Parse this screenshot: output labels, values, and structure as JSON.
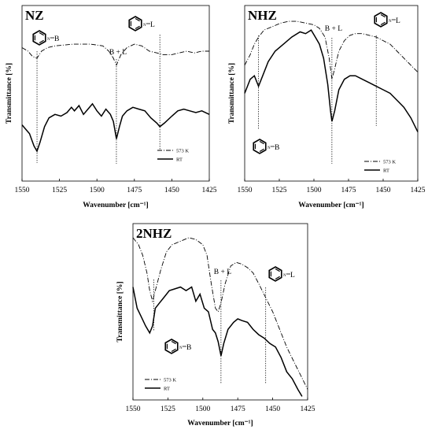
{
  "chart_data": [
    {
      "type": "line",
      "title": "NZ",
      "xlabel": "Wavenumber [cm⁻¹]",
      "ylabel": "Transmittance [%]",
      "xlim": [
        1550,
        1425
      ],
      "xticks": [
        "1550",
        "1525",
        "1500",
        "1475",
        "1450",
        "1425"
      ],
      "grid": false,
      "legend_position": "bottom-right",
      "series": [
        {
          "name": "573 K",
          "style": "dash-dot",
          "x": [
            1550,
            1546,
            1543,
            1540,
            1537,
            1533,
            1528,
            1522,
            1516,
            1510,
            1504,
            1500,
            1496,
            1492,
            1489,
            1487,
            1484,
            1480,
            1475,
            1470,
            1465,
            1460,
            1456,
            1450,
            1445,
            1440,
            1435,
            1430,
            1425
          ],
          "y": [
            0.76,
            0.74,
            0.71,
            0.7,
            0.74,
            0.76,
            0.77,
            0.775,
            0.78,
            0.78,
            0.78,
            0.775,
            0.77,
            0.74,
            0.7,
            0.66,
            0.72,
            0.76,
            0.78,
            0.77,
            0.74,
            0.73,
            0.72,
            0.72,
            0.73,
            0.74,
            0.73,
            0.74,
            0.74
          ]
        },
        {
          "name": "RT",
          "style": "solid",
          "x": [
            1550,
            1548,
            1545,
            1542,
            1540,
            1538,
            1535,
            1532,
            1528,
            1524,
            1520,
            1517,
            1515,
            1512,
            1509,
            1506,
            1503,
            1500,
            1497,
            1494,
            1491,
            1489,
            1487,
            1485,
            1483,
            1480,
            1476,
            1472,
            1468,
            1464,
            1460,
            1458,
            1455,
            1450,
            1446,
            1442,
            1438,
            1434,
            1430,
            1425
          ],
          "y": [
            0.32,
            0.3,
            0.27,
            0.2,
            0.17,
            0.22,
            0.31,
            0.36,
            0.38,
            0.37,
            0.39,
            0.42,
            0.4,
            0.43,
            0.38,
            0.41,
            0.44,
            0.4,
            0.37,
            0.41,
            0.38,
            0.34,
            0.24,
            0.31,
            0.37,
            0.4,
            0.42,
            0.41,
            0.4,
            0.36,
            0.33,
            0.31,
            0.33,
            0.37,
            0.4,
            0.41,
            0.4,
            0.39,
            0.4,
            0.38
          ]
        }
      ],
      "markers": [
        {
          "x": 1540,
          "label": "B"
        },
        {
          "x": 1487,
          "label": "B + L"
        },
        {
          "x": 1458,
          "label": "L"
        }
      ]
    },
    {
      "type": "line",
      "title": "NHZ",
      "xlabel": "Wavenumber [cm⁻¹]",
      "ylabel": "Transmittance [%]",
      "xlim": [
        1550,
        1425
      ],
      "xticks": [
        "1550",
        "1525",
        "1500",
        "1475",
        "1450",
        "1425"
      ],
      "grid": false,
      "legend_position": "bottom-right",
      "series": [
        {
          "name": "573 K",
          "style": "dash-dot",
          "x": [
            1550,
            1546,
            1543,
            1540,
            1536,
            1530,
            1524,
            1518,
            1512,
            1506,
            1500,
            1496,
            1492,
            1489,
            1487,
            1485,
            1482,
            1478,
            1474,
            1470,
            1465,
            1460,
            1455,
            1450,
            1445,
            1440,
            1435,
            1430,
            1425
          ],
          "y": [
            0.66,
            0.72,
            0.78,
            0.82,
            0.86,
            0.88,
            0.9,
            0.91,
            0.91,
            0.9,
            0.89,
            0.87,
            0.82,
            0.7,
            0.58,
            0.64,
            0.74,
            0.8,
            0.83,
            0.84,
            0.84,
            0.83,
            0.82,
            0.8,
            0.78,
            0.74,
            0.7,
            0.66,
            0.62
          ]
        },
        {
          "name": "RT",
          "style": "solid",
          "x": [
            1550,
            1546,
            1543,
            1540,
            1537,
            1533,
            1528,
            1522,
            1516,
            1510,
            1506,
            1502,
            1499,
            1496,
            1493,
            1490,
            1488,
            1487,
            1485,
            1482,
            1478,
            1474,
            1470,
            1465,
            1460,
            1455,
            1450,
            1445,
            1440,
            1435,
            1430,
            1425
          ],
          "y": [
            0.5,
            0.58,
            0.6,
            0.54,
            0.6,
            0.68,
            0.74,
            0.78,
            0.82,
            0.85,
            0.84,
            0.86,
            0.82,
            0.78,
            0.7,
            0.55,
            0.4,
            0.34,
            0.4,
            0.52,
            0.58,
            0.6,
            0.6,
            0.58,
            0.56,
            0.54,
            0.52,
            0.5,
            0.46,
            0.42,
            0.36,
            0.28
          ]
        }
      ],
      "markers": [
        {
          "x": 1540,
          "label": "B"
        },
        {
          "x": 1487,
          "label": "B + L"
        },
        {
          "x": 1455,
          "label": "L"
        }
      ]
    },
    {
      "type": "line",
      "title": "2NHZ",
      "xlabel": "Wavenumber [cm⁻¹]",
      "ylabel": "Transmittance [%]",
      "xlim": [
        1550,
        1425
      ],
      "xticks": [
        "1550",
        "1525",
        "1500",
        "1475",
        "1450",
        "1425"
      ],
      "grid": false,
      "legend_position": "bottom-left",
      "series": [
        {
          "name": "573 K",
          "style": "dash-dot",
          "x": [
            1550,
            1546,
            1543,
            1540,
            1538,
            1536,
            1534,
            1530,
            1526,
            1522,
            1516,
            1510,
            1505,
            1500,
            1497,
            1494,
            1491,
            1489,
            1487,
            1484,
            1480,
            1476,
            1472,
            1468,
            1464,
            1460,
            1455,
            1450,
            1445,
            1440,
            1435,
            1430,
            1425
          ],
          "y": [
            0.92,
            0.88,
            0.82,
            0.72,
            0.62,
            0.56,
            0.62,
            0.74,
            0.84,
            0.88,
            0.9,
            0.92,
            0.91,
            0.88,
            0.82,
            0.66,
            0.52,
            0.5,
            0.55,
            0.66,
            0.76,
            0.78,
            0.77,
            0.75,
            0.72,
            0.66,
            0.58,
            0.5,
            0.4,
            0.3,
            0.22,
            0.14,
            0.06
          ]
        },
        {
          "name": "RT",
          "style": "solid",
          "x": [
            1550,
            1547,
            1544,
            1541,
            1538,
            1536,
            1534,
            1531,
            1528,
            1524,
            1520,
            1516,
            1512,
            1508,
            1505,
            1502,
            1499,
            1496,
            1493,
            1491,
            1489,
            1487,
            1485,
            1482,
            1478,
            1475,
            1472,
            1468,
            1464,
            1460,
            1456,
            1452,
            1448,
            1444,
            1440,
            1436,
            1432,
            1429
          ],
          "y": [
            0.64,
            0.52,
            0.47,
            0.42,
            0.38,
            0.42,
            0.52,
            0.55,
            0.58,
            0.62,
            0.63,
            0.64,
            0.62,
            0.64,
            0.56,
            0.6,
            0.52,
            0.5,
            0.4,
            0.38,
            0.33,
            0.25,
            0.32,
            0.4,
            0.44,
            0.46,
            0.45,
            0.44,
            0.4,
            0.37,
            0.35,
            0.32,
            0.3,
            0.24,
            0.16,
            0.12,
            0.06,
            0.02
          ]
        }
      ],
      "markers": [
        {
          "x": 1535,
          "label": "B"
        },
        {
          "x": 1487,
          "label": "B + L"
        },
        {
          "x": 1455,
          "label": "L"
        }
      ]
    }
  ]
}
